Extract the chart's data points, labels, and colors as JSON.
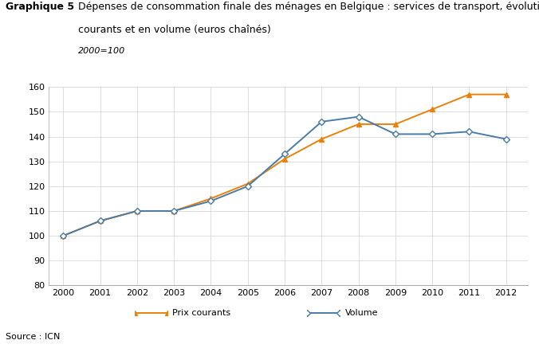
{
  "years": [
    2000,
    2001,
    2002,
    2003,
    2004,
    2005,
    2006,
    2007,
    2008,
    2009,
    2010,
    2011,
    2012
  ],
  "prix_courants": [
    100,
    106,
    110,
    110,
    115,
    121,
    131,
    139,
    145,
    145,
    151,
    157,
    157
  ],
  "volume": [
    100,
    106,
    110,
    110,
    114,
    120,
    133,
    146,
    148,
    141,
    141,
    142,
    139
  ],
  "prix_courants_color": "#E8820C",
  "volume_color": "#4A7BA7",
  "title_label": "Graphique 5",
  "title_main_line1": "Dépenses de consommation finale des ménages en Belgique : services de transport, évolutions à prix",
  "title_main_line2": "courants et en volume (euros chaînés)",
  "subtitle": "2000=100",
  "ylim": [
    80,
    160
  ],
  "yticks": [
    80,
    90,
    100,
    110,
    120,
    130,
    140,
    150,
    160
  ],
  "source": "Source : ICN",
  "legend_prix": "Prix courants",
  "legend_volume": "Volume",
  "background_color": "#ffffff",
  "grid_color": "#d0d0d0"
}
